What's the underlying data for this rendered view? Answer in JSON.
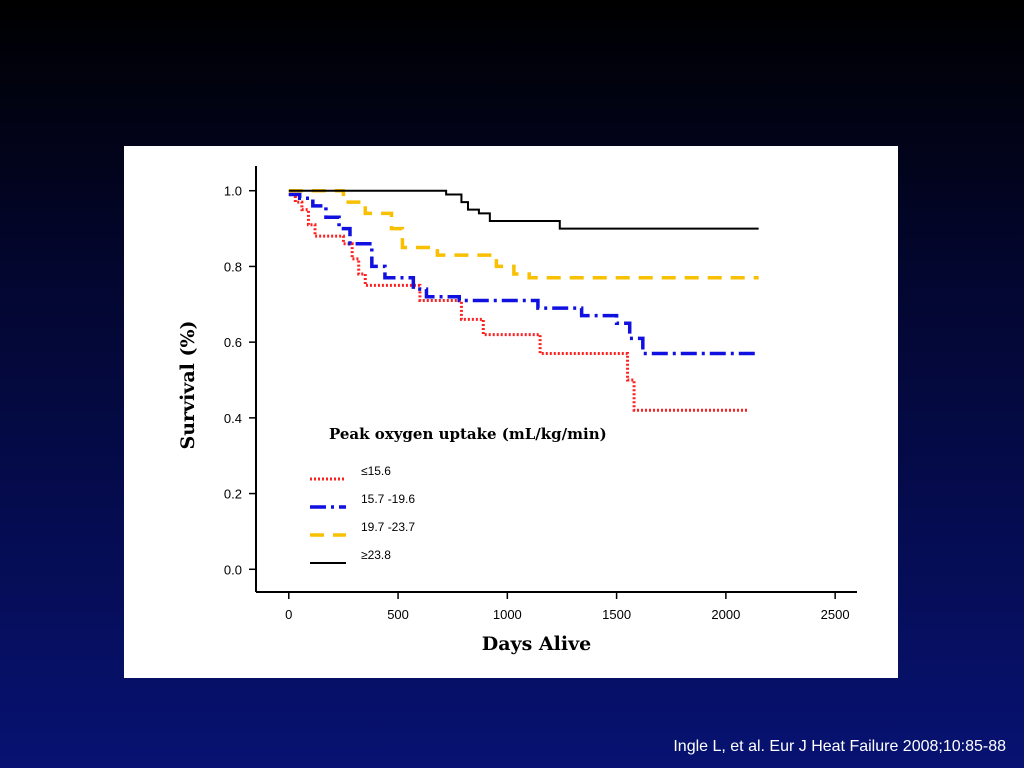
{
  "citation": "Ingle L, et al. Eur J Heat Failure 2008;10:85-88",
  "chart_data": {
    "type": "line",
    "title": "",
    "xlabel": "Days Alive",
    "ylabel": "Survival (%)",
    "xlim": [
      -150,
      2600
    ],
    "ylim": [
      -0.06,
      1.06
    ],
    "x_ticks": [
      0,
      500,
      1000,
      1500,
      2000,
      2500
    ],
    "y_ticks": [
      0.0,
      0.2,
      0.4,
      0.6,
      0.8,
      1.0
    ],
    "x_tick_labels": [
      "0",
      "500",
      "1000",
      "1500",
      "2000",
      "2500"
    ],
    "y_tick_labels": [
      "0.0",
      "0.2",
      "0.4",
      "0.6",
      "0.8",
      "1.0"
    ],
    "legend_title": "Peak oxygen uptake (mL/kg/min)",
    "legend_position": "lower-left",
    "grid": false,
    "series": [
      {
        "name": "≤15.6",
        "color": "#ff2020",
        "style": "dotted",
        "x": [
          0,
          30,
          60,
          90,
          120,
          250,
          290,
          320,
          350,
          600,
          790,
          890,
          1150,
          1550,
          1580,
          2100
        ],
        "y": [
          0.99,
          0.97,
          0.95,
          0.91,
          0.88,
          0.86,
          0.82,
          0.78,
          0.75,
          0.71,
          0.66,
          0.62,
          0.57,
          0.5,
          0.42,
          0.42
        ]
      },
      {
        "name": "15.7 -19.6",
        "color": "#1010e0",
        "style": "dash-dot",
        "x": [
          0,
          50,
          110,
          170,
          230,
          280,
          380,
          440,
          570,
          630,
          780,
          1140,
          1340,
          1500,
          1560,
          1620,
          2150
        ],
        "y": [
          0.99,
          0.98,
          0.96,
          0.93,
          0.9,
          0.86,
          0.8,
          0.77,
          0.74,
          0.72,
          0.71,
          0.69,
          0.67,
          0.65,
          0.61,
          0.57,
          0.57
        ]
      },
      {
        "name": "19.7 -23.7",
        "color": "#f8c000",
        "style": "dashed",
        "x": [
          0,
          250,
          350,
          470,
          520,
          680,
          950,
          1030,
          1100,
          2150
        ],
        "y": [
          1.0,
          0.97,
          0.94,
          0.9,
          0.85,
          0.83,
          0.8,
          0.78,
          0.77,
          0.77
        ]
      },
      {
        "name": "≥23.8",
        "color": "#000000",
        "style": "solid",
        "x": [
          0,
          720,
          790,
          820,
          870,
          920,
          1240,
          2150
        ],
        "y": [
          1.0,
          0.99,
          0.97,
          0.95,
          0.94,
          0.92,
          0.9,
          0.9
        ]
      }
    ]
  }
}
